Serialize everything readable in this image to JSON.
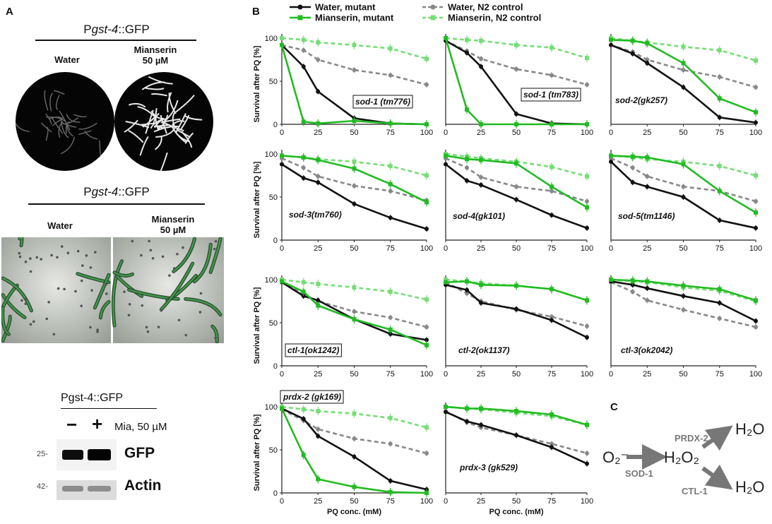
{
  "panel_a": {
    "label": "A",
    "gfp_title_prefix": "P",
    "gfp_title_gene": "gst-4",
    "gfp_title_suffix": "::GFP",
    "water_label": "Water",
    "mianserin_label_line1": "Mianserin",
    "mianserin_label_line2": "50 µM",
    "blot_title": "Pgst-4::GFP",
    "blot_minus": "−",
    "blot_plus": "+",
    "blot_treatment": "Mia, 50 µM",
    "blot_marker_top": "25-",
    "blot_marker_bottom": "42-",
    "blot_band_gfp": "GFP",
    "blot_band_actin": "Actin"
  },
  "panel_b": {
    "label": "B",
    "ylabel": "Survival after PQ [%]",
    "xlabel": "PQ conc. (mM)",
    "legend": [
      {
        "name": "Water, mutant",
        "color": "#111111",
        "dashed": false,
        "marker": "circle"
      },
      {
        "name": "Mianserin, mutant",
        "color": "#22bb22",
        "dashed": false,
        "marker": "square"
      },
      {
        "name": "Water, N2 control",
        "color": "#888888",
        "dashed": true,
        "marker": "circle"
      },
      {
        "name": "Mianserin, N2 control",
        "color": "#77dd77",
        "dashed": true,
        "marker": "square"
      }
    ]
  },
  "panel_c": {
    "label": "C",
    "superoxide": "O₂⁻",
    "sod": "SOD-1",
    "h2o2": "H₂O₂",
    "prdx": "PRDX-2",
    "ctl": "CTL-1",
    "h2o_top": "H₂O",
    "h2o_bottom": "H₂O"
  },
  "chart_data": [
    {
      "type": "line",
      "title": "sod-1 (tm776)",
      "x": [
        0,
        15,
        25,
        50,
        75,
        100
      ],
      "ylim": [
        0,
        100
      ],
      "series": [
        {
          "name": "Water, mutant",
          "values": [
            92,
            67,
            38,
            7,
            1,
            0
          ]
        },
        {
          "name": "Mianserin, mutant",
          "values": [
            92,
            3,
            1,
            4,
            1,
            0
          ]
        },
        {
          "name": "Water, N2 control",
          "values": [
            92,
            86,
            75,
            63,
            57,
            46
          ]
        },
        {
          "name": "Mianserin, N2 control",
          "values": [
            100,
            98,
            95,
            92,
            88,
            76
          ]
        }
      ]
    },
    {
      "type": "line",
      "title": "sod-1 (tm783)",
      "x": [
        0,
        15,
        25,
        50,
        75,
        100
      ],
      "ylim": [
        0,
        100
      ],
      "series": [
        {
          "name": "Water, mutant",
          "values": [
            97,
            83,
            67,
            12,
            1,
            0
          ]
        },
        {
          "name": "Mianserin, mutant",
          "values": [
            100,
            17,
            0,
            0,
            0,
            0
          ]
        },
        {
          "name": "Water, N2 control",
          "values": [
            97,
            85,
            76,
            64,
            57,
            46
          ]
        },
        {
          "name": "Mianserin, N2 control",
          "values": [
            100,
            98,
            97,
            92,
            89,
            77
          ]
        }
      ]
    },
    {
      "type": "line",
      "title": "sod-2(gk257)",
      "x": [
        0,
        15,
        25,
        50,
        75,
        100
      ],
      "ylim": [
        0,
        100
      ],
      "series": [
        {
          "name": "Water, mutant",
          "values": [
            92,
            82,
            71,
            43,
            8,
            2
          ]
        },
        {
          "name": "Mianserin, mutant",
          "values": [
            98,
            97,
            94,
            71,
            30,
            14
          ]
        },
        {
          "name": "Water, N2 control",
          "values": [
            92,
            84,
            75,
            63,
            55,
            43
          ]
        },
        {
          "name": "Mianserin, N2 control",
          "values": [
            100,
            97,
            95,
            90,
            86,
            74
          ]
        }
      ]
    },
    {
      "type": "line",
      "title": "sod-3(tm760)",
      "x": [
        0,
        15,
        25,
        50,
        75,
        100
      ],
      "ylim": [
        0,
        100
      ],
      "series": [
        {
          "name": "Water, mutant",
          "values": [
            88,
            72,
            67,
            42,
            26,
            13
          ]
        },
        {
          "name": "Mianserin, mutant",
          "values": [
            98,
            96,
            93,
            83,
            65,
            44
          ]
        },
        {
          "name": "Water, N2 control",
          "values": [
            95,
            84,
            74,
            63,
            57,
            46
          ]
        },
        {
          "name": "Mianserin, N2 control",
          "values": [
            98,
            96,
            94,
            91,
            86,
            75
          ]
        }
      ]
    },
    {
      "type": "line",
      "title": "sod-4(gk101)",
      "x": [
        0,
        15,
        25,
        50,
        75,
        100
      ],
      "ylim": [
        0,
        100
      ],
      "series": [
        {
          "name": "Water, mutant",
          "values": [
            88,
            69,
            64,
            47,
            29,
            14
          ]
        },
        {
          "name": "Mianserin, mutant",
          "values": [
            98,
            94,
            93,
            89,
            62,
            38
          ]
        },
        {
          "name": "Water, N2 control",
          "values": [
            95,
            84,
            73,
            62,
            57,
            45
          ]
        },
        {
          "name": "Mianserin, N2 control",
          "values": [
            100,
            97,
            95,
            91,
            85,
            74
          ]
        }
      ]
    },
    {
      "type": "line",
      "title": "sod-5(tm1146)",
      "x": [
        0,
        15,
        25,
        50,
        75,
        100
      ],
      "ylim": [
        0,
        100
      ],
      "series": [
        {
          "name": "Water, mutant",
          "values": [
            91,
            67,
            62,
            50,
            23,
            14
          ]
        },
        {
          "name": "Mianserin, mutant",
          "values": [
            98,
            97,
            96,
            88,
            57,
            32
          ]
        },
        {
          "name": "Water, N2 control",
          "values": [
            95,
            84,
            74,
            62,
            57,
            45
          ]
        },
        {
          "name": "Mianserin, N2 control",
          "values": [
            98,
            96,
            94,
            91,
            86,
            75
          ]
        }
      ]
    },
    {
      "type": "line",
      "title": "ctl-1(ok1242)",
      "x": [
        0,
        15,
        25,
        50,
        75,
        100
      ],
      "ylim": [
        0,
        100
      ],
      "series": [
        {
          "name": "Water, mutant",
          "values": [
            97,
            81,
            76,
            54,
            37,
            30
          ]
        },
        {
          "name": "Mianserin, mutant",
          "values": [
            98,
            86,
            70,
            54,
            42,
            24
          ]
        },
        {
          "name": "Water, N2 control",
          "values": [
            97,
            83,
            75,
            63,
            56,
            45
          ]
        },
        {
          "name": "Mianserin, N2 control",
          "values": [
            100,
            97,
            95,
            91,
            86,
            77
          ]
        }
      ]
    },
    {
      "type": "line",
      "title": "ctl-2(ok1137)",
      "x": [
        0,
        15,
        25,
        50,
        75,
        100
      ],
      "ylim": [
        0,
        100
      ],
      "series": [
        {
          "name": "Water, mutant",
          "values": [
            94,
            88,
            73,
            66,
            53,
            33
          ]
        },
        {
          "name": "Mianserin, mutant",
          "values": [
            97,
            98,
            94,
            93,
            89,
            76
          ]
        },
        {
          "name": "Water, N2 control",
          "values": [
            97,
            84,
            75,
            65,
            57,
            46
          ]
        },
        {
          "name": "Mianserin, N2 control",
          "values": [
            100,
            98,
            96,
            93,
            89,
            76
          ]
        }
      ]
    },
    {
      "type": "line",
      "title": "ctl-3(ok2042)",
      "x": [
        0,
        15,
        25,
        50,
        75,
        100
      ],
      "ylim": [
        0,
        100
      ],
      "series": [
        {
          "name": "Water, mutant",
          "values": [
            98,
            94,
            90,
            81,
            73,
            52
          ]
        },
        {
          "name": "Mianserin, mutant",
          "values": [
            100,
            99,
            98,
            93,
            89,
            76
          ]
        },
        {
          "name": "Water, N2 control",
          "values": [
            97,
            86,
            76,
            65,
            55,
            45
          ]
        },
        {
          "name": "Mianserin, N2 control",
          "values": [
            100,
            98,
            97,
            91,
            87,
            75
          ]
        }
      ]
    },
    {
      "type": "line",
      "title": "prdx-2 (gk169)",
      "x": [
        0,
        15,
        25,
        50,
        75,
        100
      ],
      "ylim": [
        0,
        100
      ],
      "series": [
        {
          "name": "Water, mutant",
          "values": [
            98,
            86,
            66,
            42,
            14,
            4
          ]
        },
        {
          "name": "Mianserin, mutant",
          "values": [
            98,
            44,
            16,
            7,
            1,
            0
          ]
        },
        {
          "name": "Water, N2 control",
          "values": [
            97,
            84,
            74,
            63,
            57,
            46
          ]
        },
        {
          "name": "Mianserin, N2 control",
          "values": [
            100,
            97,
            95,
            92,
            87,
            76
          ]
        }
      ]
    },
    {
      "type": "line",
      "title": "prdx-3 (gk529)",
      "x": [
        0,
        15,
        25,
        50,
        75,
        100
      ],
      "ylim": [
        0,
        100
      ],
      "series": [
        {
          "name": "Water, mutant",
          "values": [
            94,
            83,
            79,
            67,
            53,
            34
          ]
        },
        {
          "name": "Mianserin, mutant",
          "values": [
            100,
            98,
            98,
            95,
            91,
            79
          ]
        },
        {
          "name": "Water, N2 control",
          "values": [
            95,
            82,
            76,
            67,
            57,
            46
          ]
        },
        {
          "name": "Mianserin, N2 control",
          "values": [
            100,
            98,
            97,
            93,
            89,
            79
          ]
        }
      ]
    }
  ]
}
